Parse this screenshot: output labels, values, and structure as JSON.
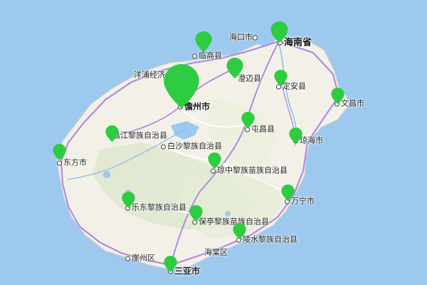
{
  "map": {
    "colors": {
      "sea": "#9ec9ef",
      "land": "#f3f1e7",
      "marker": "#2ecc40",
      "road": "#b18be0"
    },
    "labels": {
      "haikou": "海口市",
      "hainan": "海南省",
      "lingao": "临高县",
      "yangpu": "洋浦经济",
      "danzhou": "儋州市",
      "chengmai": "澄迈县",
      "dingan": "定安县",
      "wenchang": "文昌市",
      "tunchang": "屯昌县",
      "changjiang": "昌江黎族自治县",
      "qionghai": "琼海市",
      "baisha": "白沙黎族自治县",
      "dongfang": "东方市",
      "qiongzhong": "琼中黎族苗族自治县",
      "wanning": "万宁市",
      "ledong": "乐东黎族自治县",
      "baoting": "保亭黎族苗族自治县",
      "lingshui": "陵水黎族自治县",
      "haitang": "海棠区",
      "yazhou": "崖州区",
      "sanya": "三亚市"
    },
    "markers": [
      {
        "name": "danzhou",
        "size": "large",
        "icon": "map-pin-icon"
      },
      {
        "name": "haikou",
        "size": "normal",
        "icon": "map-pin-icon"
      },
      {
        "name": "lingao",
        "size": "normal",
        "icon": "map-pin-icon"
      },
      {
        "name": "chengmai",
        "size": "normal",
        "icon": "map-pin-icon"
      },
      {
        "name": "dingan",
        "size": "normal",
        "icon": "map-pin-icon"
      },
      {
        "name": "wenchang",
        "size": "normal",
        "icon": "map-pin-icon"
      },
      {
        "name": "tunchang",
        "size": "normal",
        "icon": "map-pin-icon"
      },
      {
        "name": "changjiang",
        "size": "normal",
        "icon": "map-pin-icon"
      },
      {
        "name": "qionghai",
        "size": "normal",
        "icon": "map-pin-icon"
      },
      {
        "name": "dongfang",
        "size": "normal",
        "icon": "map-pin-icon"
      },
      {
        "name": "qiongzhong",
        "size": "normal",
        "icon": "map-pin-icon"
      },
      {
        "name": "wanning",
        "size": "normal",
        "icon": "map-pin-icon"
      },
      {
        "name": "ledong",
        "size": "normal",
        "icon": "map-pin-icon"
      },
      {
        "name": "baoting",
        "size": "normal",
        "icon": "map-pin-icon"
      },
      {
        "name": "lingshui",
        "size": "normal",
        "icon": "map-pin-icon"
      },
      {
        "name": "sanya",
        "size": "normal",
        "icon": "map-pin-icon"
      }
    ]
  }
}
